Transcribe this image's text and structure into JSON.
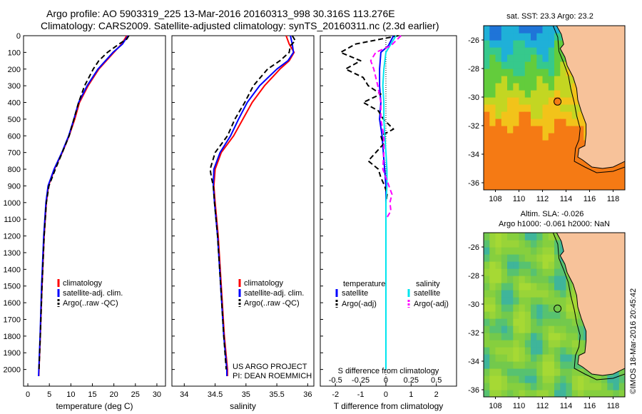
{
  "header": {
    "line1": "Argo profile: AO 5903319_225 13-Mar-2016 20160313_998 30.316S 113.276E",
    "line2": "Climatology: CARS2009. Satellite-adjusted climatology: synTS_20160311.nc (2.3d earlier)"
  },
  "side_label": "©IMOS 18-Mar-2016 20:45:42",
  "colors": {
    "climatology": "#ff0000",
    "satellite": "#0000ff",
    "argo": "#000000",
    "salinity_satellite": "#00e5ee",
    "salinity_argo": "#ff00ff",
    "land": "#f7c29a"
  },
  "chart_data": [
    {
      "id": "temperature",
      "type": "line",
      "xlabel": "temperature (deg C)",
      "ylabel": "",
      "xlim": [
        -1,
        32
      ],
      "ylim": [
        0,
        2100
      ],
      "xticks": [
        0,
        5,
        10,
        15,
        20,
        25,
        30
      ],
      "yticks": [
        0,
        100,
        200,
        300,
        400,
        500,
        600,
        700,
        800,
        900,
        1000,
        1100,
        1200,
        1300,
        1400,
        1500,
        1600,
        1700,
        1800,
        1900,
        2000
      ],
      "legend": [
        "climatology",
        "satellite-adj. clim.",
        "Argo(..raw -QC)"
      ],
      "legend_position": "lower-middle",
      "series": [
        {
          "name": "climatology",
          "depth": [
            0,
            50,
            100,
            200,
            300,
            400,
            500,
            600,
            700,
            800,
            900,
            1000,
            1200,
            1500,
            1800,
            2000,
            2040
          ],
          "values": [
            23.0,
            21.8,
            20.0,
            16.5,
            14.0,
            12.0,
            10.9,
            9.6,
            8.0,
            6.2,
            4.8,
            4.3,
            3.8,
            3.3,
            2.9,
            2.6,
            2.55
          ]
        },
        {
          "name": "satellite-adj. clim.",
          "depth": [
            0,
            50,
            100,
            200,
            300,
            400,
            500,
            600,
            700,
            800,
            900,
            1000,
            1200,
            1500,
            1800,
            2000,
            2040
          ],
          "values": [
            23.3,
            22.0,
            19.8,
            16.3,
            13.8,
            11.8,
            10.7,
            9.5,
            7.9,
            6.1,
            4.7,
            4.2,
            3.7,
            3.2,
            2.85,
            2.55,
            2.5
          ]
        },
        {
          "name": "Argo(..raw -QC)",
          "depth": [
            0,
            20,
            50,
            100,
            150,
            200,
            300,
            400,
            500,
            600,
            700,
            800,
            900,
            1000,
            1200,
            1500,
            1800,
            2000
          ],
          "values": [
            23.5,
            23.0,
            21.2,
            18.5,
            16.5,
            15.2,
            13.2,
            11.8,
            10.7,
            9.6,
            8.0,
            6.4,
            4.9,
            4.3,
            3.8,
            3.3,
            2.9,
            2.6
          ]
        }
      ]
    },
    {
      "id": "salinity",
      "type": "line",
      "xlabel": "salinity",
      "ylabel": "",
      "xlim": [
        33.8,
        36.1
      ],
      "ylim": [
        0,
        2100
      ],
      "xticks": [
        34,
        34.5,
        35,
        35.5,
        36
      ],
      "xticklabels": [
        "34",
        "34.5",
        "35",
        "35.5",
        "36"
      ],
      "legend": [
        "climatology",
        "satellite-adj. clim.",
        "Argo(..raw -QC)"
      ],
      "legend_position": "lower-middle",
      "annotation": [
        "US ARGO PROJECT",
        "PI: DEAN ROEMMICH"
      ],
      "series": [
        {
          "name": "climatology",
          "depth": [
            0,
            50,
            100,
            150,
            200,
            300,
            400,
            500,
            600,
            700,
            800,
            900,
            1000,
            1200,
            1500,
            1800,
            2000,
            2040
          ],
          "values": [
            35.65,
            35.7,
            35.78,
            35.7,
            35.55,
            35.3,
            35.1,
            34.95,
            34.8,
            34.6,
            34.5,
            34.48,
            34.5,
            34.55,
            34.6,
            34.65,
            34.7,
            34.7
          ]
        },
        {
          "name": "satellite-adj. clim.",
          "depth": [
            0,
            50,
            100,
            150,
            200,
            300,
            400,
            500,
            600,
            700,
            800,
            900,
            1000,
            1200,
            1500,
            1800,
            2000,
            2040
          ],
          "values": [
            35.72,
            35.75,
            35.77,
            35.68,
            35.5,
            35.22,
            35.02,
            34.88,
            34.75,
            34.58,
            34.48,
            34.47,
            34.49,
            34.54,
            34.59,
            34.64,
            34.69,
            34.69
          ]
        },
        {
          "name": "Argo(..raw -QC)",
          "depth": [
            0,
            30,
            60,
            100,
            150,
            200,
            300,
            400,
            500,
            600,
            700,
            800,
            850,
            900,
            1000,
            1200,
            1500,
            1800,
            2000
          ],
          "values": [
            35.75,
            35.8,
            35.72,
            35.7,
            35.55,
            35.35,
            35.12,
            34.98,
            34.82,
            34.7,
            34.5,
            34.42,
            34.44,
            34.47,
            34.49,
            34.54,
            34.59,
            34.64,
            34.68
          ]
        }
      ]
    },
    {
      "id": "difference",
      "type": "line",
      "xlabel": "T difference from climatology",
      "xlabel2": "S difference from climatology",
      "xlim": [
        -2.6,
        2.8
      ],
      "xlim_s": [
        -0.65,
        0.7
      ],
      "ylim": [
        0,
        2100
      ],
      "xticks": [
        -2,
        -1,
        0,
        1,
        2
      ],
      "xticks_s": [
        -0.5,
        -0.25,
        0,
        0.25,
        0.5
      ],
      "xticklabels_s": [
        "-0.5",
        "-0.25",
        "0",
        "0.25",
        "0.5"
      ],
      "legend_headers": [
        "temperature",
        "salinity"
      ],
      "legend": [
        "satellite",
        "Argo(-adj)",
        "satellite",
        "Argo(-adj)"
      ],
      "series": [
        {
          "name": "temperature satellite",
          "axis": "T",
          "depth": [
            0,
            60,
            100,
            200,
            300,
            400,
            500,
            600,
            700,
            800,
            900,
            1000,
            1500,
            2000
          ],
          "values": [
            0.3,
            0.1,
            -0.2,
            -0.25,
            -0.25,
            -0.2,
            -0.25,
            -0.15,
            -0.1,
            -0.05,
            0.0,
            0.0,
            0.0,
            0.0
          ]
        },
        {
          "name": "temperature Argo(-adj)",
          "axis": "T",
          "depth": [
            0,
            50,
            100,
            150,
            200,
            250,
            300,
            350,
            400,
            450,
            500,
            560,
            600,
            650,
            700,
            750,
            800,
            850,
            900,
            950,
            1000,
            1100,
            1500,
            2000
          ],
          "values": [
            0.5,
            -1.2,
            -1.8,
            -1.0,
            -1.6,
            -0.9,
            -0.7,
            -0.2,
            -0.9,
            -0.3,
            -0.1,
            0.3,
            -0.2,
            -0.1,
            -0.4,
            -0.7,
            -0.3,
            -0.2,
            -0.05,
            0.05,
            0.0,
            0.0,
            0.0,
            0.0
          ]
        },
        {
          "name": "salinity satellite",
          "axis": "S",
          "depth": [
            0,
            50,
            100,
            200,
            300,
            400,
            500,
            600,
            700,
            800,
            900,
            1000,
            1500,
            2000
          ],
          "values": [
            0.1,
            0.05,
            0.0,
            -0.02,
            -0.03,
            -0.02,
            -0.02,
            -0.01,
            0.0,
            0.01,
            0.01,
            0.0,
            0.0,
            0.0
          ]
        },
        {
          "name": "salinity Argo(-adj)",
          "axis": "S",
          "depth": [
            0,
            30,
            60,
            100,
            150,
            200,
            300,
            400,
            500,
            600,
            700,
            800,
            900,
            950,
            1000,
            1050,
            1100
          ],
          "values": [
            0.15,
            0.1,
            0.05,
            -0.1,
            -0.15,
            -0.12,
            -0.08,
            -0.05,
            -0.05,
            -0.02,
            -0.02,
            -0.03,
            0.03,
            0.06,
            0.04,
            0.05,
            0.0
          ]
        }
      ]
    }
  ],
  "maps": [
    {
      "id": "sst-map",
      "title": "sat. SST: 23.3 Argo: 23.2",
      "xticklabels": [
        "108",
        "110",
        "112",
        "114",
        "116",
        "118"
      ],
      "yticklabels": [
        "-26",
        "-28",
        "-30",
        "-32",
        "-34",
        "-36"
      ],
      "xlim": [
        107,
        119
      ],
      "ylim": [
        -36.5,
        -25
      ],
      "profile_location": [
        113.276,
        -30.316
      ]
    },
    {
      "id": "sla-map",
      "title": "Altim. SLA: -0.026",
      "subtitle": "Argo h1000: -0.061 h2000: NaN",
      "xticklabels": [
        "108",
        "110",
        "112",
        "114",
        "116",
        "118"
      ],
      "yticklabels": [
        "-26",
        "-28",
        "-30",
        "-32",
        "-34",
        "-36"
      ],
      "xlim": [
        107,
        119
      ],
      "ylim": [
        -36.5,
        -25
      ],
      "profile_location": [
        113.276,
        -30.316
      ]
    }
  ]
}
